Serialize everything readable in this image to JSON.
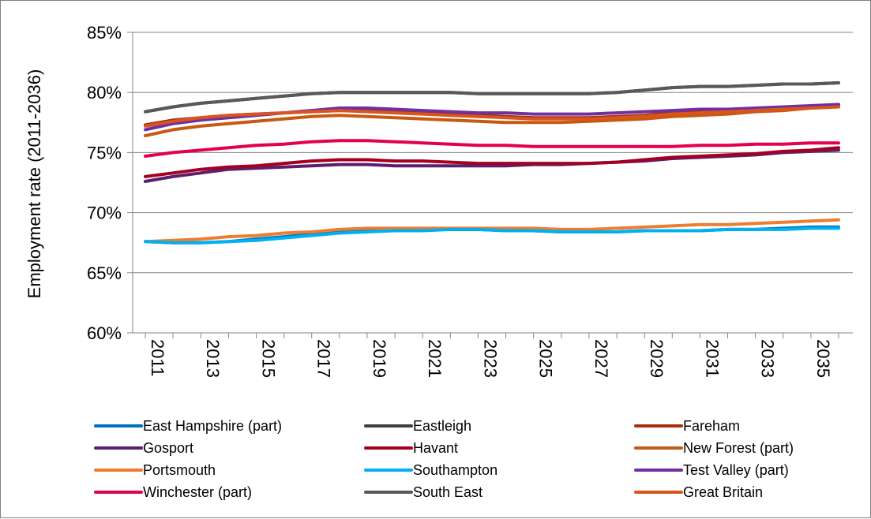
{
  "chart_data": {
    "type": "line",
    "title": "",
    "xlabel": "",
    "ylabel": "Employment rate (2011-2036)",
    "ylim": [
      60,
      85
    ],
    "yticks": [
      "60%",
      "65%",
      "70%",
      "75%",
      "80%",
      "85%"
    ],
    "ytick_values": [
      60,
      65,
      70,
      75,
      80,
      85
    ],
    "xlim": [
      2011,
      2036
    ],
    "xticks": [
      "2011",
      "2013",
      "2015",
      "2017",
      "2019",
      "2021",
      "2023",
      "2025",
      "2027",
      "2029",
      "2031",
      "2033",
      "2035"
    ],
    "xtick_values": [
      2011,
      2013,
      2015,
      2017,
      2019,
      2021,
      2023,
      2025,
      2027,
      2029,
      2031,
      2033,
      2035
    ],
    "grid": "horizontal",
    "legend_position": "bottom",
    "x": [
      2011,
      2012,
      2013,
      2014,
      2015,
      2016,
      2017,
      2018,
      2019,
      2020,
      2021,
      2022,
      2023,
      2024,
      2025,
      2026,
      2027,
      2028,
      2029,
      2030,
      2031,
      2032,
      2033,
      2034,
      2035,
      2036
    ],
    "series": [
      {
        "name": "East Hampshire (part)",
        "color": "#0070c0",
        "values": [
          67.6,
          67.5,
          67.5,
          67.6,
          67.8,
          68.0,
          68.2,
          68.4,
          68.5,
          68.6,
          68.6,
          68.6,
          68.6,
          68.5,
          68.5,
          68.4,
          68.4,
          68.4,
          68.5,
          68.5,
          68.5,
          68.6,
          68.6,
          68.7,
          68.8,
          68.8
        ]
      },
      {
        "name": "Eastleigh",
        "color": "#404040",
        "values": [
          78.4,
          78.8,
          79.1,
          79.3,
          79.5,
          79.7,
          79.9,
          80.0,
          80.0,
          80.0,
          80.0,
          80.0,
          79.9,
          79.9,
          79.9,
          79.9,
          79.9,
          80.0,
          80.2,
          80.4,
          80.5,
          80.5,
          80.6,
          80.7,
          80.7,
          80.8
        ]
      },
      {
        "name": "Fareham",
        "color": "#a5300f",
        "values": [
          77.3,
          77.7,
          77.9,
          78.1,
          78.2,
          78.3,
          78.4,
          78.5,
          78.5,
          78.4,
          78.3,
          78.2,
          78.1,
          78.0,
          77.9,
          77.9,
          77.9,
          78.0,
          78.1,
          78.3,
          78.4,
          78.5,
          78.6,
          78.7,
          78.8,
          78.9
        ]
      },
      {
        "name": "Gosport",
        "color": "#5c1f6e",
        "values": [
          72.6,
          73.0,
          73.3,
          73.6,
          73.7,
          73.8,
          73.9,
          74.0,
          74.0,
          73.9,
          73.9,
          73.9,
          73.9,
          73.9,
          74.0,
          74.0,
          74.1,
          74.2,
          74.3,
          74.5,
          74.6,
          74.7,
          74.8,
          75.0,
          75.1,
          75.2
        ]
      },
      {
        "name": "Havant",
        "color": "#a50021",
        "values": [
          73.0,
          73.3,
          73.6,
          73.8,
          73.9,
          74.1,
          74.3,
          74.4,
          74.4,
          74.3,
          74.3,
          74.2,
          74.1,
          74.1,
          74.1,
          74.1,
          74.1,
          74.2,
          74.4,
          74.6,
          74.7,
          74.8,
          74.9,
          75.1,
          75.2,
          75.4
        ]
      },
      {
        "name": "New Forest (part)",
        "color": "#c55a11",
        "values": [
          76.4,
          76.9,
          77.2,
          77.4,
          77.6,
          77.8,
          78.0,
          78.1,
          78.0,
          77.9,
          77.8,
          77.7,
          77.6,
          77.5,
          77.5,
          77.5,
          77.6,
          77.7,
          77.8,
          78.0,
          78.1,
          78.2,
          78.4,
          78.5,
          78.7,
          78.8
        ]
      },
      {
        "name": "Portsmouth",
        "color": "#ed7d31",
        "values": [
          67.6,
          67.7,
          67.8,
          68.0,
          68.1,
          68.3,
          68.4,
          68.6,
          68.7,
          68.7,
          68.7,
          68.7,
          68.7,
          68.7,
          68.7,
          68.6,
          68.6,
          68.7,
          68.8,
          68.9,
          69.0,
          69.0,
          69.1,
          69.2,
          69.3,
          69.4
        ]
      },
      {
        "name": "Southampton",
        "color": "#00b0f0",
        "values": [
          67.6,
          67.5,
          67.5,
          67.6,
          67.7,
          67.9,
          68.1,
          68.3,
          68.4,
          68.5,
          68.5,
          68.6,
          68.6,
          68.5,
          68.5,
          68.4,
          68.4,
          68.4,
          68.5,
          68.5,
          68.5,
          68.6,
          68.6,
          68.6,
          68.7,
          68.7
        ]
      },
      {
        "name": "Test Valley (part)",
        "color": "#7030a0",
        "values": [
          76.9,
          77.4,
          77.7,
          77.9,
          78.1,
          78.3,
          78.5,
          78.7,
          78.7,
          78.6,
          78.5,
          78.4,
          78.3,
          78.3,
          78.2,
          78.2,
          78.2,
          78.3,
          78.4,
          78.5,
          78.6,
          78.6,
          78.7,
          78.8,
          78.9,
          79.0
        ]
      },
      {
        "name": "Winchester (part)",
        "color": "#e4004f",
        "values": [
          74.7,
          75.0,
          75.2,
          75.4,
          75.6,
          75.7,
          75.9,
          76.0,
          76.0,
          75.9,
          75.8,
          75.7,
          75.6,
          75.6,
          75.5,
          75.5,
          75.5,
          75.5,
          75.5,
          75.5,
          75.6,
          75.6,
          75.7,
          75.7,
          75.8,
          75.8
        ]
      },
      {
        "name": "South East",
        "color": "#595959",
        "values": [
          78.4,
          78.8,
          79.1,
          79.3,
          79.5,
          79.7,
          79.9,
          80.0,
          80.0,
          80.0,
          80.0,
          80.0,
          79.9,
          79.9,
          79.9,
          79.9,
          79.9,
          80.0,
          80.2,
          80.4,
          80.5,
          80.5,
          80.6,
          80.7,
          80.7,
          80.8
        ]
      },
      {
        "name": "Great Britain",
        "color": "#d9541e",
        "values": [
          77.2,
          77.6,
          77.9,
          78.1,
          78.2,
          78.3,
          78.4,
          78.5,
          78.4,
          78.3,
          78.2,
          78.1,
          78.0,
          77.9,
          77.8,
          77.8,
          77.8,
          77.9,
          78.0,
          78.2,
          78.3,
          78.4,
          78.5,
          78.6,
          78.7,
          78.8
        ]
      }
    ]
  }
}
